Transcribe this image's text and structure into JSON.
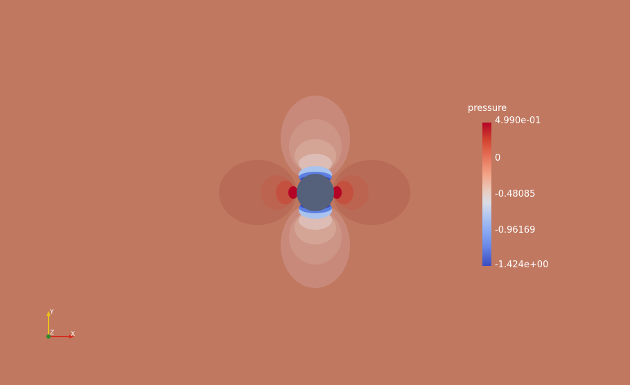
{
  "colorbar": {
    "title": "pressure",
    "ticks": [
      "4.990e-01",
      "0",
      "-0.48085",
      "-0.96169",
      "-1.424e+00"
    ],
    "range": [
      -1.424,
      0.499
    ],
    "colormap": "cool-to-warm"
  },
  "orientation_axes": {
    "y_label": "Y",
    "z_label": "Z",
    "x_label": "X",
    "x_color": "#d62d20",
    "y_color": "#e8c21a",
    "z_color": "#2a8a2a"
  },
  "colors": {
    "background_field": "#c07860",
    "cylinder": "#55607a"
  }
}
